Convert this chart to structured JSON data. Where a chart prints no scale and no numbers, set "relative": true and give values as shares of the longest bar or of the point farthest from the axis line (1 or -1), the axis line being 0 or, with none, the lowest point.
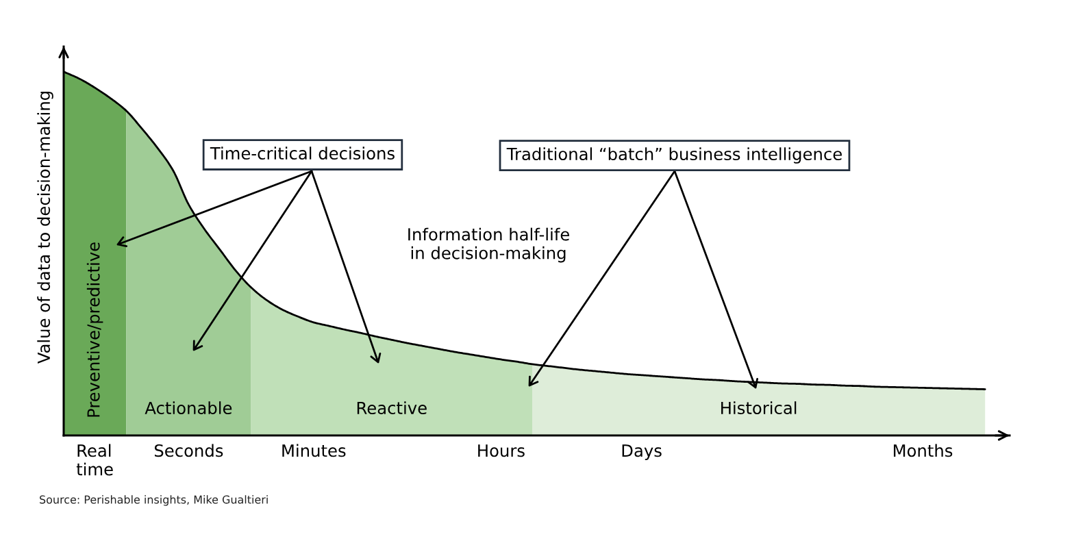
{
  "chart_data": {
    "type": "area",
    "ylabel": "Value of data to decision-making",
    "relative": true,
    "categories": [
      null,
      null,
      "Real\ntime",
      null,
      null,
      null,
      null,
      null,
      "Seconds",
      null,
      null,
      null,
      null,
      null,
      null,
      null,
      "Minutes",
      null,
      null,
      null,
      null,
      null,
      null,
      null,
      null,
      null,
      null,
      null,
      "Hours",
      null,
      null,
      null,
      null,
      null,
      null,
      null,
      null,
      "Days",
      null,
      null,
      null,
      null,
      null,
      null,
      null,
      null,
      null,
      null,
      null,
      null,
      null,
      null,
      null,
      null,
      null,
      "Months",
      null,
      null,
      null,
      null
    ],
    "tick_labels": "x",
    "series": [
      {
        "name": "Preventive/predictive",
        "color": "#6aa958",
        "values": [
          1.0,
          0.981,
          0.956,
          0.927,
          0.893,
          null,
          null,
          null,
          null,
          null,
          null,
          null,
          null,
          null,
          null,
          null,
          null,
          null,
          null,
          null,
          null,
          null,
          null,
          null,
          null,
          null,
          null,
          null,
          null,
          null,
          null,
          null,
          null,
          null,
          null,
          null,
          null,
          null,
          null,
          null,
          null,
          null,
          null,
          null,
          null,
          null,
          null,
          null,
          null,
          null,
          null,
          null,
          null,
          null,
          null,
          null,
          null,
          null,
          null,
          null
        ]
      },
      {
        "name": "Actionable",
        "color": "#a0cc96",
        "values": [
          null,
          null,
          null,
          null,
          0.893,
          0.844,
          0.791,
          0.729,
          0.635,
          0.568,
          0.511,
          0.454,
          0.407,
          null,
          null,
          null,
          null,
          null,
          null,
          null,
          null,
          null,
          null,
          null,
          null,
          null,
          null,
          null,
          null,
          null,
          null,
          null,
          null,
          null,
          null,
          null,
          null,
          null,
          null,
          null,
          null,
          null,
          null,
          null,
          null,
          null,
          null,
          null,
          null,
          null,
          null,
          null,
          null,
          null,
          null,
          null,
          null,
          null,
          null,
          null
        ]
      },
      {
        "name": "Reactive",
        "color": "#c0e0b8",
        "values": [
          null,
          null,
          null,
          null,
          null,
          null,
          null,
          null,
          null,
          null,
          null,
          null,
          0.407,
          0.372,
          0.346,
          0.327,
          0.311,
          0.301,
          0.291,
          0.282,
          0.272,
          0.263,
          0.254,
          0.246,
          0.238,
          0.23,
          0.223,
          0.216,
          0.209,
          0.203,
          0.196,
          null,
          null,
          null,
          null,
          null,
          null,
          null,
          null,
          null,
          null,
          null,
          null,
          null,
          null,
          null,
          null,
          null,
          null,
          null,
          null,
          null,
          null,
          null,
          null,
          null,
          null,
          null,
          null,
          null
        ]
      },
      {
        "name": "Historical",
        "color": "#deedd9",
        "values": [
          null,
          null,
          null,
          null,
          null,
          null,
          null,
          null,
          null,
          null,
          null,
          null,
          null,
          null,
          null,
          null,
          null,
          null,
          null,
          null,
          null,
          null,
          null,
          null,
          null,
          null,
          null,
          null,
          null,
          null,
          0.196,
          0.191,
          0.186,
          0.181,
          0.177,
          0.173,
          0.169,
          0.166,
          0.163,
          0.16,
          0.157,
          0.154,
          0.152,
          0.149,
          0.147,
          0.145,
          0.143,
          0.142,
          0.14,
          0.139,
          0.137,
          0.136,
          0.134,
          0.133,
          0.132,
          0.131,
          0.13,
          0.129,
          0.128,
          0.127
        ]
      },
      {
        "type": "line",
        "color": "#000000",
        "values": [
          1.0,
          0.981,
          0.956,
          0.927,
          0.893,
          0.844,
          0.791,
          0.729,
          0.635,
          0.568,
          0.511,
          0.454,
          0.407,
          0.372,
          0.346,
          0.327,
          0.311,
          0.301,
          0.291,
          0.282,
          0.272,
          0.263,
          0.254,
          0.246,
          0.238,
          0.23,
          0.223,
          0.216,
          0.209,
          0.203,
          0.196,
          0.191,
          0.186,
          0.181,
          0.177,
          0.173,
          0.169,
          0.166,
          0.163,
          0.16,
          0.157,
          0.154,
          0.152,
          0.149,
          0.147,
          0.145,
          0.143,
          0.142,
          0.14,
          0.139,
          0.137,
          0.136,
          0.134,
          0.133,
          0.132,
          0.131,
          0.13,
          0.129,
          0.128,
          0.127
        ]
      }
    ],
    "annotations": [
      "Time-critical decisions",
      "Traditional “batch” business intelligence",
      "Information half-life\nin decision-making",
      "Source: Perishable insights, Mike Gualtieri"
    ]
  }
}
